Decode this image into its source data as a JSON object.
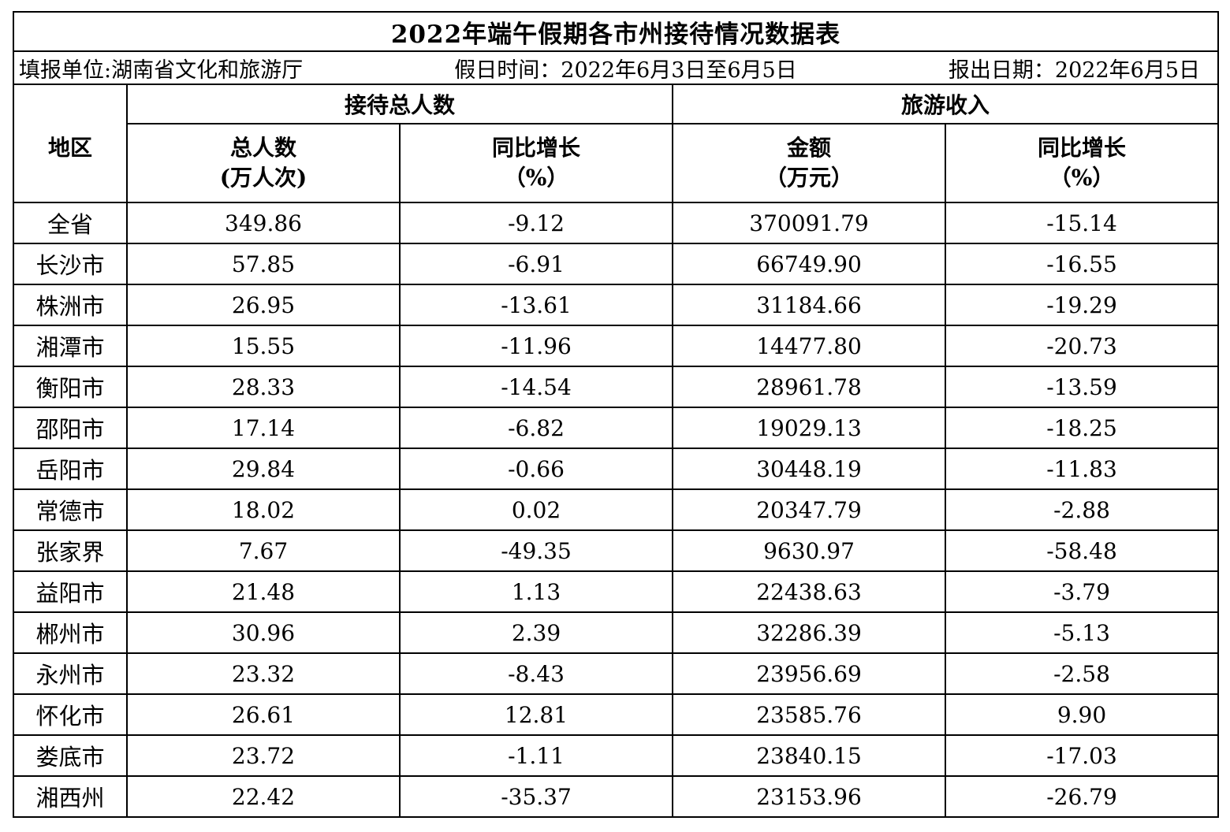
{
  "title": "2022年端午假期各市州接待情况数据表",
  "info": {
    "unit": "填报单位:湖南省文化和旅游厅",
    "holiday": "假日时间：2022年6月3日至6月5日",
    "report_date": "报出日期：2022年6月5日"
  },
  "headers": {
    "region": "地区",
    "visitors_group": "接待总人数",
    "revenue_group": "旅游收入",
    "visitors_total_line1": "总人数",
    "visitors_total_line2": "(万人次)",
    "visitors_growth_line1": "同比增长",
    "visitors_growth_line2": "（%）",
    "revenue_amount_line1": "金额",
    "revenue_amount_line2": "（万元）",
    "revenue_growth_line1": "同比增长",
    "revenue_growth_line2": "（%）"
  },
  "rows": [
    {
      "region": "全省",
      "visitors": "349.86",
      "visitors_yoy": "-9.12",
      "revenue": "370091.79",
      "revenue_yoy": "-15.14"
    },
    {
      "region": "长沙市",
      "visitors": "57.85",
      "visitors_yoy": "-6.91",
      "revenue": "66749.90",
      "revenue_yoy": "-16.55"
    },
    {
      "region": "株洲市",
      "visitors": "26.95",
      "visitors_yoy": "-13.61",
      "revenue": "31184.66",
      "revenue_yoy": "-19.29"
    },
    {
      "region": "湘潭市",
      "visitors": "15.55",
      "visitors_yoy": "-11.96",
      "revenue": "14477.80",
      "revenue_yoy": "-20.73"
    },
    {
      "region": "衡阳市",
      "visitors": "28.33",
      "visitors_yoy": "-14.54",
      "revenue": "28961.78",
      "revenue_yoy": "-13.59"
    },
    {
      "region": "邵阳市",
      "visitors": "17.14",
      "visitors_yoy": "-6.82",
      "revenue": "19029.13",
      "revenue_yoy": "-18.25"
    },
    {
      "region": "岳阳市",
      "visitors": "29.84",
      "visitors_yoy": "-0.66",
      "revenue": "30448.19",
      "revenue_yoy": "-11.83"
    },
    {
      "region": "常德市",
      "visitors": "18.02",
      "visitors_yoy": "0.02",
      "revenue": "20347.79",
      "revenue_yoy": "-2.88"
    },
    {
      "region": "张家界",
      "visitors": "7.67",
      "visitors_yoy": "-49.35",
      "revenue": "9630.97",
      "revenue_yoy": "-58.48"
    },
    {
      "region": "益阳市",
      "visitors": "21.48",
      "visitors_yoy": "1.13",
      "revenue": "22438.63",
      "revenue_yoy": "-3.79"
    },
    {
      "region": "郴州市",
      "visitors": "30.96",
      "visitors_yoy": "2.39",
      "revenue": "32286.39",
      "revenue_yoy": "-5.13"
    },
    {
      "region": "永州市",
      "visitors": "23.32",
      "visitors_yoy": "-8.43",
      "revenue": "23956.69",
      "revenue_yoy": "-2.58"
    },
    {
      "region": "怀化市",
      "visitors": "26.61",
      "visitors_yoy": "12.81",
      "revenue": "23585.76",
      "revenue_yoy": "9.90"
    },
    {
      "region": "娄底市",
      "visitors": "23.72",
      "visitors_yoy": "-1.11",
      "revenue": "23840.15",
      "revenue_yoy": "-17.03"
    },
    {
      "region": "湘西州",
      "visitors": "22.42",
      "visitors_yoy": "-35.37",
      "revenue": "23153.96",
      "revenue_yoy": "-26.79"
    }
  ]
}
